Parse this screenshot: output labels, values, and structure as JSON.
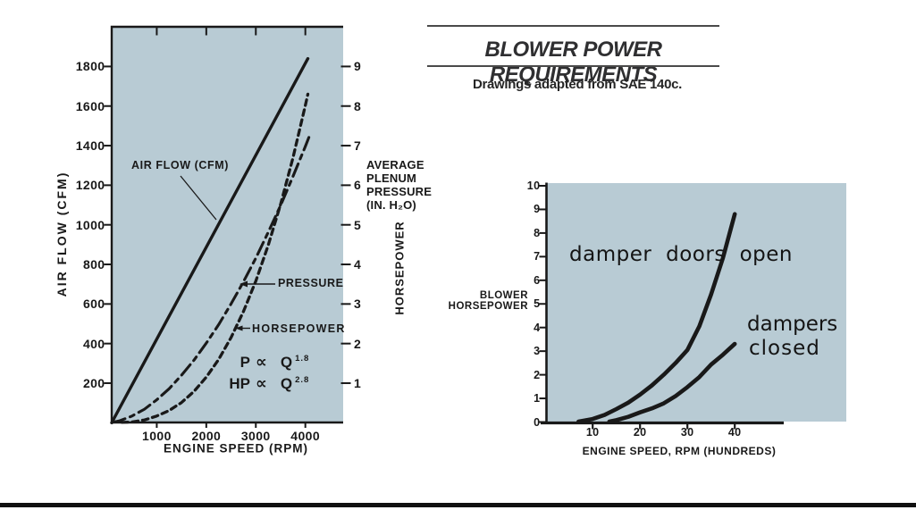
{
  "header": {
    "title": "BLOWER POWER REQUIREMENTS",
    "subtitle": "Drawings adapted from SAE 140c."
  },
  "colors": {
    "plot_bg": "#b8cbd4",
    "ink": "#191919",
    "title_ink": "#2f2f31",
    "rule": "#4a4a4a"
  },
  "chart_data": [
    {
      "type": "line",
      "title": "",
      "xlabel": "ENGINE SPEED (RPM)",
      "ylabel_left": "AIR FLOW (CFM)",
      "ylabel_right": "HORSEPOWER",
      "right_axis_note_lines": [
        "AVERAGE",
        "PLENUM",
        "PRESSURE",
        "(IN. H₂O)"
      ],
      "xlim": [
        0,
        4750
      ],
      "ylim_cfm": [
        0,
        2000
      ],
      "ylim_hp": [
        0,
        10
      ],
      "grid": false,
      "legend": "inline-callouts",
      "x_ticks": [
        1000,
        2000,
        3000,
        4000
      ],
      "y_ticks_cfm": [
        200,
        400,
        600,
        800,
        1000,
        1200,
        1400,
        1600,
        1800
      ],
      "y_ticks_hp": [
        1,
        2,
        3,
        4,
        5,
        6,
        7,
        8,
        9
      ],
      "series": [
        {
          "name": "AIR FLOW (CFM)",
          "style": "solid",
          "axis": "cfm",
          "points": [
            [
              90,
              0
            ],
            [
              4050,
              1840
            ]
          ]
        },
        {
          "name": "PRESSURE",
          "style": "dashdot",
          "axis": "hp",
          "points": [
            [
              100,
              0.01
            ],
            [
              250,
              0.05
            ],
            [
              500,
              0.17
            ],
            [
              750,
              0.34
            ],
            [
              1000,
              0.58
            ],
            [
              1250,
              0.86
            ],
            [
              1500,
              1.2
            ],
            [
              1750,
              1.58
            ],
            [
              2000,
              2.01
            ],
            [
              2250,
              2.48
            ],
            [
              2500,
              3.0
            ],
            [
              2750,
              3.56
            ],
            [
              3000,
              4.16
            ],
            [
              3250,
              4.81
            ],
            [
              3500,
              5.49
            ],
            [
              3750,
              6.22
            ],
            [
              4000,
              6.98
            ],
            [
              4100,
              7.3
            ]
          ]
        },
        {
          "name": "HORSEPOWER",
          "style": "dashed",
          "axis": "hp",
          "points": [
            [
              300,
              0.01
            ],
            [
              500,
              0.02
            ],
            [
              750,
              0.07
            ],
            [
              1000,
              0.17
            ],
            [
              1250,
              0.31
            ],
            [
              1500,
              0.51
            ],
            [
              1750,
              0.79
            ],
            [
              2000,
              1.15
            ],
            [
              2250,
              1.6
            ],
            [
              2500,
              2.15
            ],
            [
              2750,
              2.81
            ],
            [
              3000,
              3.58
            ],
            [
              3250,
              4.48
            ],
            [
              3500,
              5.52
            ],
            [
              3750,
              6.69
            ],
            [
              4000,
              8.02
            ],
            [
              4050,
              8.3
            ]
          ]
        }
      ],
      "annotations": [
        {
          "lhs": "P",
          "rel": "∝",
          "rhs": "Q",
          "exp": "1.8"
        },
        {
          "lhs": "HP",
          "rel": "∝",
          "rhs": "Q",
          "exp": "2.8"
        }
      ]
    },
    {
      "type": "line",
      "title": "",
      "xlabel": "ENGINE SPEED, RPM (HUNDREDS)",
      "ylabel_lines": [
        "BLOWER",
        "HORSEPOWER"
      ],
      "xlim": [
        0,
        50
      ],
      "ylim": [
        0,
        10
      ],
      "grid": false,
      "legend": "inline-labels",
      "x_ticks": [
        10,
        20,
        30,
        40
      ],
      "y_ticks": [
        0,
        1,
        2,
        3,
        4,
        5,
        6,
        7,
        8,
        9,
        10
      ],
      "series": [
        {
          "name": "damper doors open",
          "points": [
            [
              7,
              0.02
            ],
            [
              10,
              0.13
            ],
            [
              12.5,
              0.3
            ],
            [
              15,
              0.55
            ],
            [
              17.5,
              0.82
            ],
            [
              20,
              1.16
            ],
            [
              22.5,
              1.55
            ],
            [
              25,
              2.0
            ],
            [
              27.5,
              2.5
            ],
            [
              30,
              3.05
            ],
            [
              32.5,
              4.05
            ],
            [
              35,
              5.4
            ],
            [
              37.5,
              6.95
            ],
            [
              40,
              8.8
            ]
          ]
        },
        {
          "name": "dampers closed",
          "label_lines": [
            "dampers",
            "closed"
          ],
          "points": [
            [
              13.5,
              0.02
            ],
            [
              15,
              0.08
            ],
            [
              17.5,
              0.22
            ],
            [
              20,
              0.41
            ],
            [
              22.5,
              0.58
            ],
            [
              25,
              0.79
            ],
            [
              27.5,
              1.1
            ],
            [
              30,
              1.48
            ],
            [
              32.5,
              1.9
            ],
            [
              35,
              2.43
            ],
            [
              37.5,
              2.85
            ],
            [
              40,
              3.31
            ]
          ]
        }
      ]
    }
  ]
}
